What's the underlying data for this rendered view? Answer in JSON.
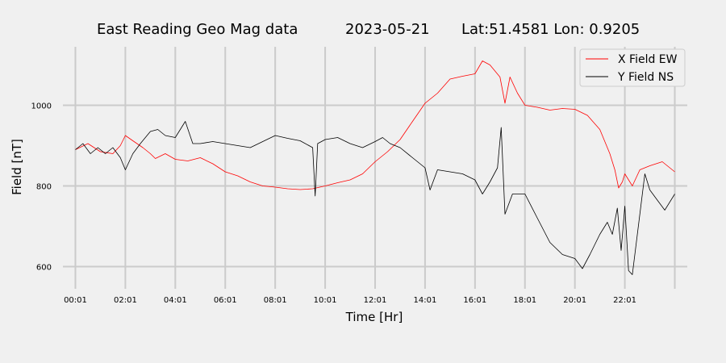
{
  "chart_data": {
    "type": "line",
    "title_parts": [
      "East Reading Geo Mag data",
      "2023-05-21",
      "Lat:51.4581  Lon: 0.9205"
    ],
    "xlabel": "Time  [Hr]",
    "ylabel": "Field  [nT]",
    "xlim": [
      -0.5,
      24.5
    ],
    "ylim": [
      545,
      1145
    ],
    "grid": true,
    "legend_position": "top-right",
    "x_ticks": [
      0,
      2,
      4,
      6,
      8,
      10,
      12,
      14,
      16,
      18,
      20,
      22,
      24
    ],
    "x_tick_labels": [
      "00:01",
      "02:01",
      "04:01",
      "06:01",
      "08:01",
      "10:01",
      "12:01",
      "14:01",
      "16:01",
      "18:01",
      "20:01",
      "22:01",
      ""
    ],
    "y_ticks": [
      600,
      800,
      1000
    ],
    "y_tick_labels": [
      "600",
      "800",
      "1000"
    ],
    "series": [
      {
        "name": "X Field EW",
        "color": "#ff0000",
        "points": [
          [
            0,
            890
          ],
          [
            0.5,
            905
          ],
          [
            1,
            885
          ],
          [
            1.5,
            880
          ],
          [
            1.8,
            900
          ],
          [
            2,
            925
          ],
          [
            2.3,
            912
          ],
          [
            2.7,
            895
          ],
          [
            3,
            880
          ],
          [
            3.2,
            868
          ],
          [
            3.6,
            880
          ],
          [
            4,
            866
          ],
          [
            4.5,
            862
          ],
          [
            5,
            870
          ],
          [
            5.5,
            855
          ],
          [
            6,
            835
          ],
          [
            6.5,
            825
          ],
          [
            7,
            810
          ],
          [
            7.5,
            800
          ],
          [
            8,
            797
          ],
          [
            8.5,
            793
          ],
          [
            9,
            791
          ],
          [
            9.5,
            793
          ],
          [
            10,
            800
          ],
          [
            10.5,
            808
          ],
          [
            11,
            815
          ],
          [
            11.5,
            830
          ],
          [
            12,
            860
          ],
          [
            12.5,
            885
          ],
          [
            13,
            915
          ],
          [
            13.5,
            960
          ],
          [
            14,
            1005
          ],
          [
            14.5,
            1030
          ],
          [
            15,
            1065
          ],
          [
            15.5,
            1072
          ],
          [
            16,
            1078
          ],
          [
            16.3,
            1110
          ],
          [
            16.6,
            1100
          ],
          [
            17,
            1070
          ],
          [
            17.2,
            1005
          ],
          [
            17.4,
            1070
          ],
          [
            17.7,
            1030
          ],
          [
            18,
            1000
          ],
          [
            18.5,
            995
          ],
          [
            19,
            988
          ],
          [
            19.5,
            992
          ],
          [
            20,
            990
          ],
          [
            20.5,
            975
          ],
          [
            21,
            940
          ],
          [
            21.4,
            880
          ],
          [
            21.6,
            840
          ],
          [
            21.75,
            795
          ],
          [
            21.9,
            810
          ],
          [
            22,
            830
          ],
          [
            22.3,
            800
          ],
          [
            22.6,
            840
          ],
          [
            23,
            850
          ],
          [
            23.5,
            860
          ],
          [
            24,
            835
          ]
        ]
      },
      {
        "name": "Y Field NS",
        "color": "#000000",
        "points": [
          [
            0,
            890
          ],
          [
            0.3,
            905
          ],
          [
            0.6,
            880
          ],
          [
            0.9,
            895
          ],
          [
            1.2,
            880
          ],
          [
            1.5,
            895
          ],
          [
            1.8,
            870
          ],
          [
            2,
            840
          ],
          [
            2.3,
            880
          ],
          [
            2.6,
            905
          ],
          [
            3,
            935
          ],
          [
            3.3,
            940
          ],
          [
            3.6,
            925
          ],
          [
            4,
            920
          ],
          [
            4.4,
            960
          ],
          [
            4.7,
            905
          ],
          [
            5,
            905
          ],
          [
            5.5,
            910
          ],
          [
            6,
            905
          ],
          [
            6.5,
            900
          ],
          [
            7,
            895
          ],
          [
            7.5,
            910
          ],
          [
            8,
            925
          ],
          [
            8.5,
            918
          ],
          [
            9,
            912
          ],
          [
            9.5,
            895
          ],
          [
            9.6,
            775
          ],
          [
            9.7,
            905
          ],
          [
            10,
            915
          ],
          [
            10.5,
            920
          ],
          [
            11,
            905
          ],
          [
            11.5,
            895
          ],
          [
            12,
            910
          ],
          [
            12.3,
            920
          ],
          [
            12.6,
            905
          ],
          [
            13,
            895
          ],
          [
            13.5,
            870
          ],
          [
            14,
            845
          ],
          [
            14.2,
            790
          ],
          [
            14.5,
            840
          ],
          [
            15,
            835
          ],
          [
            15.5,
            830
          ],
          [
            16,
            815
          ],
          [
            16.3,
            780
          ],
          [
            16.6,
            810
          ],
          [
            16.9,
            845
          ],
          [
            17.05,
            945
          ],
          [
            17.2,
            730
          ],
          [
            17.5,
            780
          ],
          [
            18,
            780
          ],
          [
            18.5,
            720
          ],
          [
            19,
            660
          ],
          [
            19.5,
            630
          ],
          [
            20,
            620
          ],
          [
            20.3,
            595
          ],
          [
            20.6,
            630
          ],
          [
            21,
            680
          ],
          [
            21.3,
            710
          ],
          [
            21.5,
            680
          ],
          [
            21.7,
            745
          ],
          [
            21.85,
            640
          ],
          [
            22,
            750
          ],
          [
            22.15,
            590
          ],
          [
            22.3,
            580
          ],
          [
            22.5,
            680
          ],
          [
            22.8,
            830
          ],
          [
            23,
            790
          ],
          [
            23.3,
            765
          ],
          [
            23.6,
            740
          ],
          [
            24,
            780
          ]
        ]
      }
    ]
  }
}
